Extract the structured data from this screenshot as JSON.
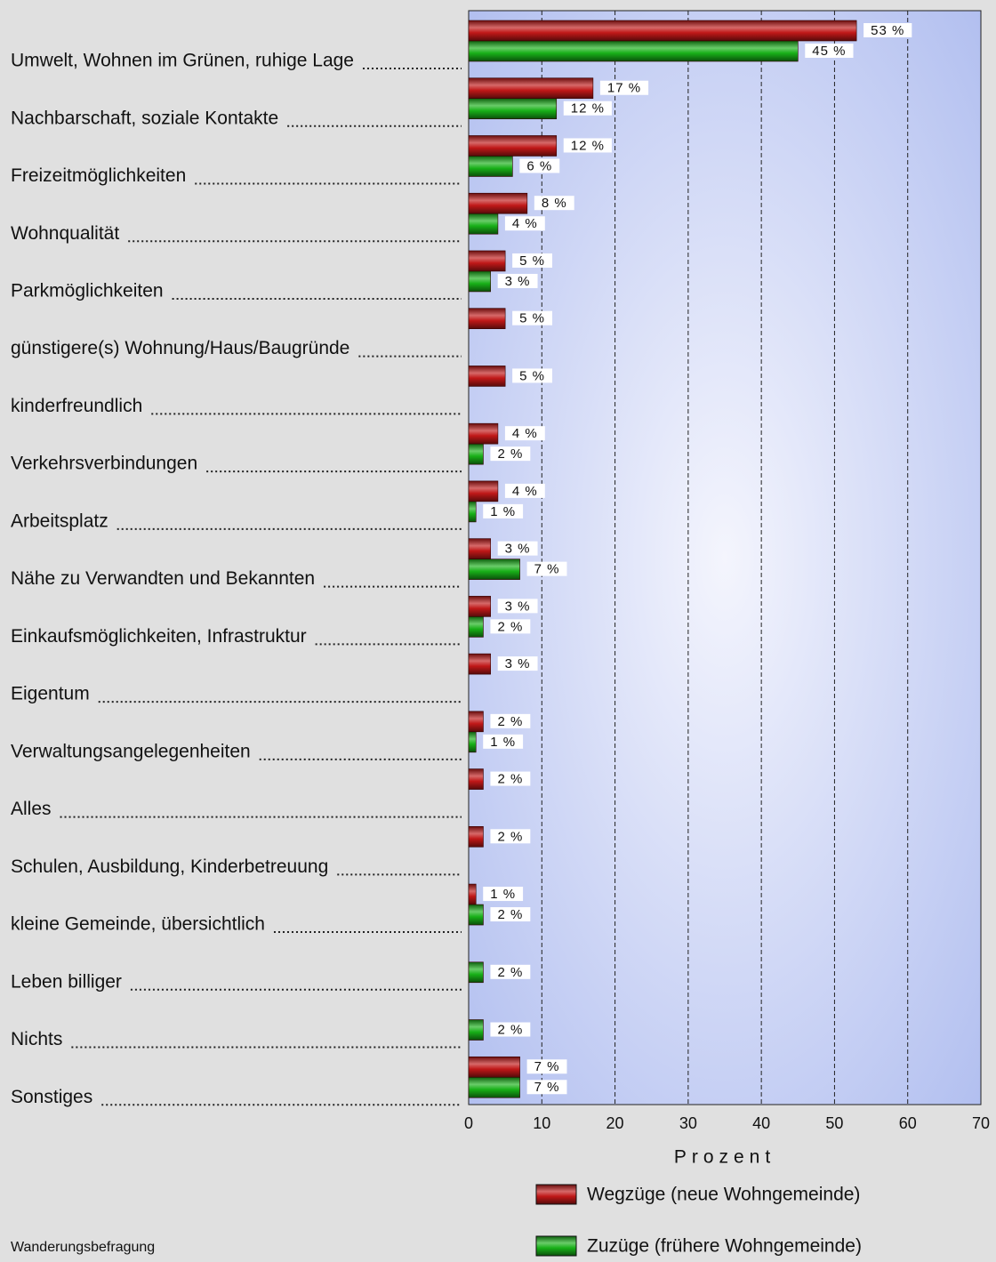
{
  "chart_data": {
    "type": "hbar",
    "categories": [
      "Umwelt, Wohnen im Grünen, ruhige Lage",
      "Nachbarschaft, soziale Kontakte",
      "Freizeitmöglichkeiten",
      "Wohnqualität",
      "Parkmöglichkeiten",
      "günstigere(s) Wohnung/Haus/Baugründe",
      "kinderfreundlich",
      "Verkehrsverbindungen",
      "Arbeitsplatz",
      "Nähe zu Verwandten und Bekannten",
      "Einkaufsmöglichkeiten, Infrastruktur",
      "Eigentum",
      "Verwaltungsangelegenheiten",
      "Alles",
      "Schulen, Ausbildung, Kinderbetreuung",
      "kleine Gemeinde, übersichtlich",
      "Leben billiger",
      "Nichts",
      "Sonstiges"
    ],
    "series": [
      {
        "name": "Wegzüge (neue Wohngemeinde)",
        "color": "#c01818",
        "values": [
          53,
          17,
          12,
          8,
          5,
          5,
          5,
          4,
          4,
          3,
          3,
          3,
          2,
          2,
          2,
          1,
          null,
          null,
          7
        ],
        "value_labels": [
          "53 %",
          "17 %",
          "12 %",
          "8 %",
          "5 %",
          "5 %",
          "5 %",
          "4 %",
          "4 %",
          "3 %",
          "3 %",
          "3 %",
          "2 %",
          "2 %",
          "2 %",
          "1 %",
          null,
          null,
          "7 %"
        ]
      },
      {
        "name": "Zuzüge (frühere Wohngemeinde)",
        "color": "#18b018",
        "values": [
          45,
          12,
          6,
          4,
          3,
          null,
          null,
          2,
          1,
          7,
          2,
          null,
          1,
          null,
          null,
          2,
          2,
          2,
          7
        ],
        "value_labels": [
          "45 %",
          "12 %",
          "6 %",
          "4 %",
          "3 %",
          null,
          null,
          "2 %",
          "1 %",
          "7 %",
          "2 %",
          null,
          "1 %",
          null,
          null,
          "2 %",
          "2 %",
          "2 %",
          "7 %"
        ]
      }
    ],
    "xlim": [
      0,
      70
    ],
    "xticks": [
      0,
      10,
      20,
      30,
      40,
      50,
      60,
      70
    ],
    "xlabel": "Prozent",
    "grid": true,
    "footnote": "Wanderungsbefragung"
  }
}
